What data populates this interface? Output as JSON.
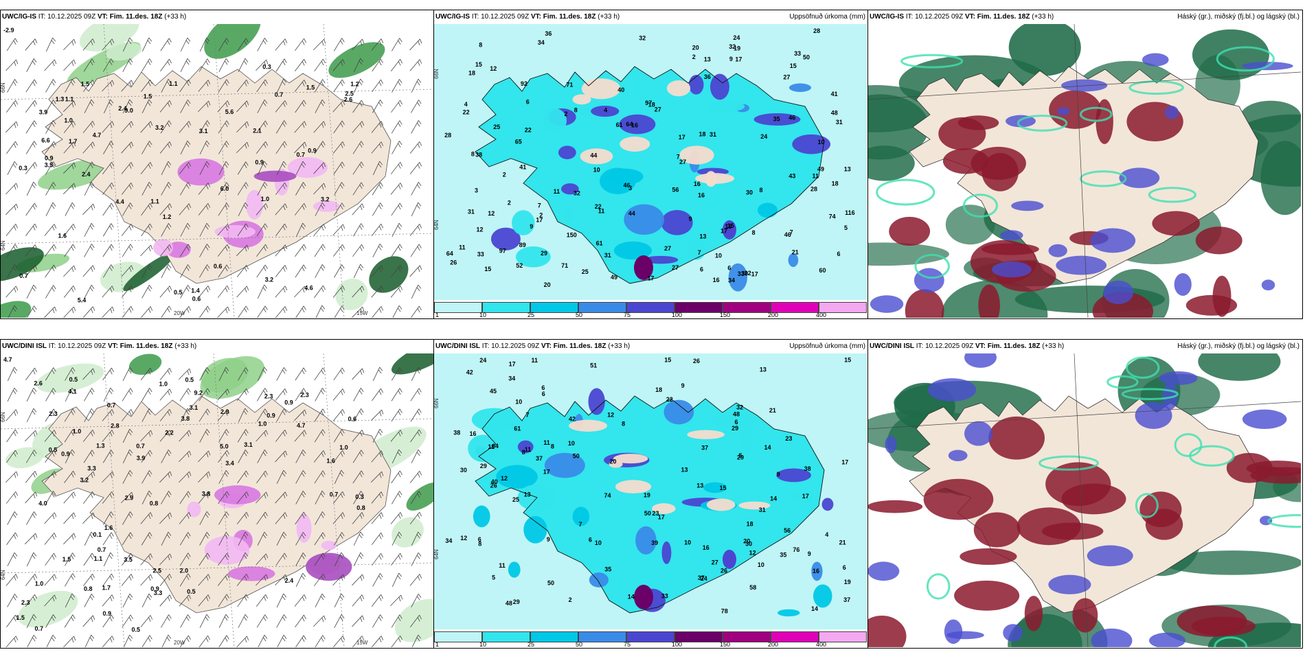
{
  "panels": [
    {
      "id": "r1c1",
      "model": "UWC/IG-IS",
      "it_label": "IT:",
      "it_value": "10.12.2025 09Z",
      "vt_label": "VT:",
      "vt_value": "Fim. 11.des. 18Z",
      "lead": "(+33 h)",
      "right_title": "",
      "lat_labels": [
        "66N",
        "64N"
      ],
      "lon_labels": [
        "20W",
        "15W"
      ],
      "corner_value": "-2.9",
      "values": [
        "0.6",
        "0.5",
        "0.7",
        "1.4",
        "1.0",
        "4.7",
        "5.6",
        "5.4",
        "1.2",
        "1.1",
        "2.4",
        "2.6",
        "1.1",
        "0.9",
        "1.0",
        "0.9",
        "1.5",
        "9.0",
        "2.1",
        "4.6",
        "0.7",
        "2.4",
        "1.5",
        "1.2",
        "0.3",
        "1.3",
        "1.6",
        "1.7",
        "3.2",
        "6.0",
        "3.9",
        "0.6",
        "3.2",
        "3.5",
        "2.5",
        "1.5",
        "3.1",
        "3.2",
        "4.4",
        "0.7",
        "0.9",
        "1.1",
        "6.6",
        "0.3"
      ]
    },
    {
      "id": "r1c2",
      "model": "UWC/IG-IS",
      "it_label": "IT:",
      "it_value": "10.12.2025 09Z",
      "vt_label": "VT:",
      "vt_value": "Fim. 11.des. 18Z",
      "lead": "(+33 h)",
      "right_title": "Uppsöfnuð úrkoma (mm)",
      "lat_labels": [
        "66N",
        "64N"
      ],
      "values": [
        "15",
        "13",
        "10",
        "8",
        "31",
        "17",
        "21",
        "16",
        "18",
        "40",
        "2",
        "12",
        "15",
        "15",
        "89",
        "6",
        "12",
        "2",
        "3",
        "2",
        "6",
        "4",
        "7",
        "8",
        "3",
        "16",
        "41",
        "6",
        "7",
        "20",
        "11",
        "9",
        "2",
        "7",
        "30",
        "10",
        "12",
        "2",
        "34",
        "18",
        "17",
        "33",
        "24",
        "10",
        "15",
        "18",
        "31",
        "33",
        "31",
        "34",
        "38",
        "17",
        "11",
        "4",
        "35",
        "19",
        "22",
        "26",
        "20",
        "25",
        "13",
        "18",
        "18",
        "22",
        "11",
        "17",
        "27",
        "28",
        "27",
        "32",
        "28",
        "24",
        "92",
        "41",
        "32",
        "116",
        "97",
        "16",
        "29",
        "43",
        "46",
        "36",
        "44",
        "30",
        "44",
        "11",
        "13",
        "28",
        "16",
        "27",
        "17",
        "33",
        "9",
        "36",
        "8",
        "27",
        "97",
        "32",
        "22",
        "25",
        "22",
        "27",
        "46",
        "71",
        "49",
        "64",
        "49",
        "56",
        "60",
        "46",
        "61",
        "48",
        "65",
        "52",
        "61",
        "64",
        "71",
        "31",
        "9",
        "8",
        "5",
        "6",
        "7",
        "8",
        "50",
        "74",
        "150",
        "17"
      ],
      "legend": [
        "1",
        "10",
        "25",
        "50",
        "75",
        "100",
        "150",
        "200",
        "400"
      ]
    },
    {
      "id": "r1c3",
      "model": "UWC/IG-IS",
      "it_label": "IT:",
      "it_value": "10.12.2025 09Z",
      "vt_label": "VT:",
      "vt_value": "Fim. 11.des. 18Z",
      "lead": "(+33 h)",
      "right_title": "Háský (gr.), miðský (fj.bl.) og lágský (bl.)"
    },
    {
      "id": "r2c1",
      "model": "UWC/DINI ISL",
      "it_label": "IT:",
      "it_value": "10.12.2025 09Z",
      "vt_label": "VT:",
      "vt_value": "Fim. 11.des. 18Z",
      "lead": "(+33 h)",
      "right_title": "",
      "lat_labels": [
        "66N",
        "64N"
      ],
      "lon_labels": [
        "20W",
        "15W"
      ],
      "corner_value": "4.7",
      "values": [
        "5.0",
        "3.1",
        "2.3",
        "4.7",
        "2.3",
        "2.6",
        "2.0",
        "1.3",
        "1.0",
        "1.6",
        "1.7",
        "2.3",
        "2.2",
        "3.8",
        "2.9",
        "2.5",
        "1.6",
        "1.0",
        "0.9",
        "0.7",
        "0.1",
        "0.6",
        "0.9",
        "0.5",
        "0.7",
        "0.8",
        "0.5",
        "2.8",
        "0.5",
        "0.7",
        "1.0",
        "1.5",
        "2.9",
        "0.8",
        "0.7",
        "1.0",
        "0.5",
        "0.3",
        "0.9",
        "2.4",
        "1.5",
        "3.4",
        "3.1",
        "2.3",
        "4.1",
        "3.5",
        "3.3",
        "3.9",
        "4.0",
        "3.2",
        "3.8",
        "0.9",
        "9.2",
        "1.0",
        "3.3",
        "0.9",
        "1.1",
        "0.7",
        "0.5",
        "0.8"
      ]
    },
    {
      "id": "r2c2",
      "model": "UWC/DINI ISL",
      "it_label": "IT:",
      "it_value": "10.12.2025 09Z",
      "vt_label": "VT:",
      "vt_value": "Fim. 11.des. 18Z",
      "lead": "(+33 h)",
      "right_title": "Uppsöfnuð úrkoma (mm)",
      "lat_labels": [
        "66N",
        "64N"
      ],
      "values": [
        "13",
        "12",
        "8",
        "10",
        "8",
        "7",
        "5",
        "6",
        "6",
        "8",
        "11",
        "12",
        "24",
        "50",
        "51",
        "18",
        "10",
        "6",
        "23",
        "42",
        "45",
        "48",
        "17",
        "10",
        "26",
        "15",
        "34",
        "12",
        "50",
        "34",
        "8",
        "24",
        "25",
        "33",
        "35",
        "37",
        "16",
        "17",
        "21",
        "29",
        "7",
        "4",
        "2",
        "30",
        "20",
        "6",
        "29",
        "17",
        "11",
        "15",
        "16",
        "19",
        "17",
        "20",
        "21",
        "23",
        "29",
        "12",
        "6",
        "9",
        "10",
        "13",
        "15",
        "17",
        "18",
        "32",
        "26",
        "35",
        "31",
        "40",
        "48",
        "19",
        "29",
        "5",
        "11",
        "30",
        "37",
        "37",
        "22",
        "38",
        "14",
        "14",
        "13",
        "13",
        "14",
        "10",
        "9",
        "9",
        "14",
        "11",
        "26",
        "42",
        "38",
        "58",
        "56",
        "76",
        "61",
        "39",
        "50",
        "78",
        "74",
        "64",
        "37",
        "9",
        "16",
        "6",
        "11",
        "27"
      ],
      "legend": [
        "1",
        "10",
        "25",
        "50",
        "75",
        "100",
        "150",
        "200",
        "400"
      ]
    },
    {
      "id": "r2c3",
      "model": "UWC/DINI ISL",
      "it_label": "IT:",
      "it_value": "10.12.2025 09Z",
      "vt_label": "VT:",
      "vt_value": "Fim. 11.des. 18Z",
      "lead": "(+33 h)",
      "right_title": "Háský (gr.), miðský (fj.bl.) og lágský (bl.)"
    }
  ],
  "colors": {
    "land": "#f2e6d9",
    "precip_legend": [
      "#bff5f7",
      "#33e5ec",
      "#00c8e6",
      "#3a8be8",
      "#4b46d1",
      "#6a0068",
      "#a00080",
      "#e000b8",
      "#f4a8f0"
    ],
    "cloud_high": "#1f6b48",
    "cloud_mid": "#8b1a2e",
    "cloud_low": "#4a4ecf"
  }
}
